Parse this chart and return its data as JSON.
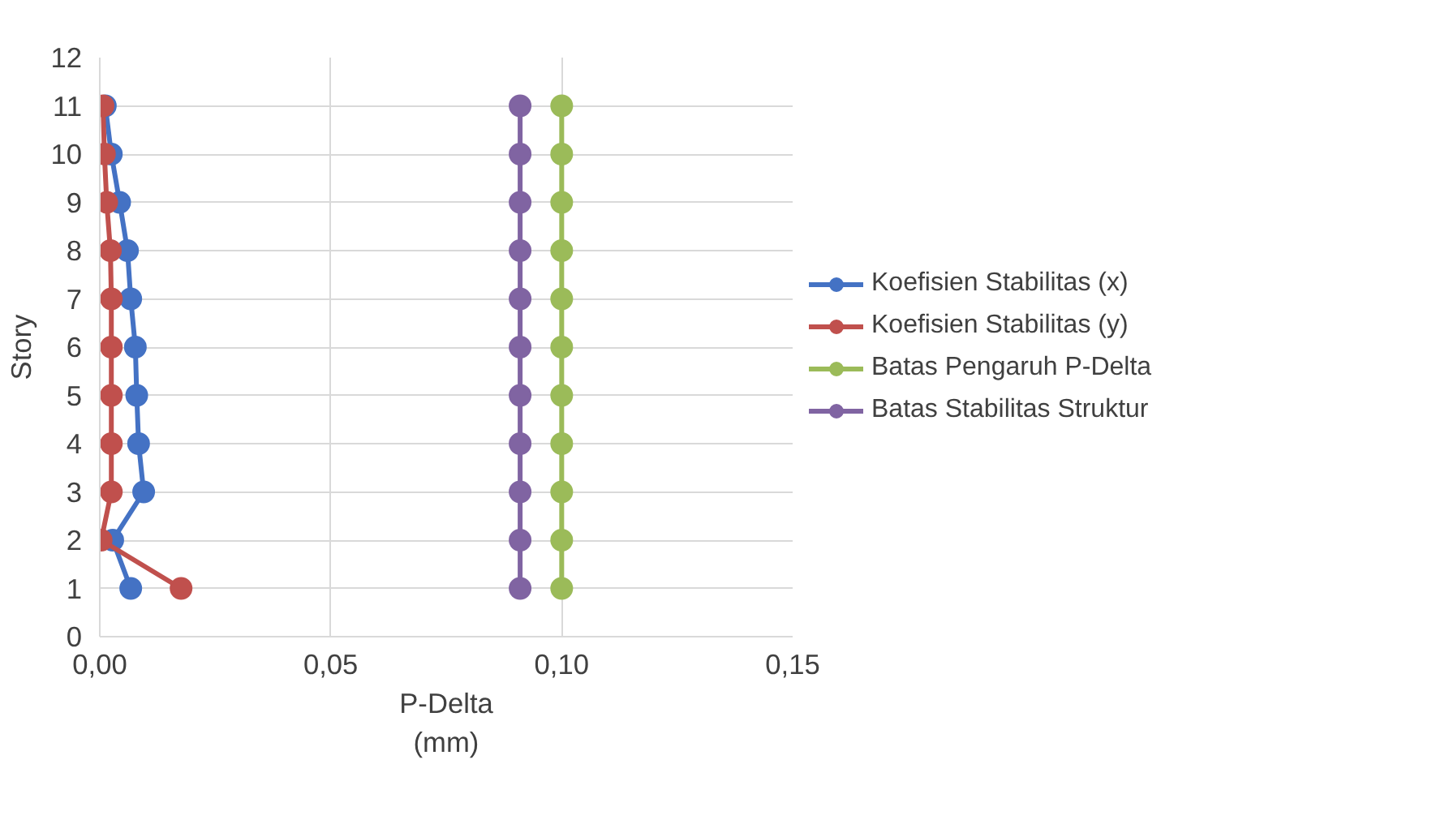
{
  "chart_data": {
    "type": "line",
    "xlabel": "P-Delta\n(mm)",
    "ylabel": "Story",
    "xlim": [
      0,
      0.15
    ],
    "xticks": [
      {
        "value": 0,
        "label": "0,00"
      },
      {
        "value": 0.05,
        "label": "0,05"
      },
      {
        "value": 0.1,
        "label": "0,10"
      },
      {
        "value": 0.15,
        "label": "0,15"
      }
    ],
    "ylim": [
      0,
      12
    ],
    "yticks": [
      0,
      1,
      2,
      3,
      4,
      5,
      6,
      7,
      8,
      9,
      10,
      11,
      12
    ],
    "grid": true,
    "legend": "right",
    "marker": "circle",
    "line_style": "solid",
    "series": [
      {
        "name": "Koefisien Stabilitas (x)",
        "color": "#4472c4",
        "x": [
          0.0067,
          0.0028,
          0.0095,
          0.0084,
          0.008,
          0.0077,
          0.0067,
          0.006,
          0.0043,
          0.0025,
          0.0012
        ],
        "values": [
          1,
          2,
          3,
          4,
          5,
          6,
          7,
          8,
          9,
          10,
          11
        ]
      },
      {
        "name": "Koefisien Stabilitas (y)",
        "color": "#c0504d",
        "x": [
          0.0176,
          0.0003,
          0.0025,
          0.0025,
          0.0025,
          0.0025,
          0.0025,
          0.0023,
          0.0015,
          0.001,
          0.0007
        ],
        "values": [
          1,
          2,
          3,
          4,
          5,
          6,
          7,
          8,
          9,
          10,
          11
        ]
      },
      {
        "name": "Batas Pengaruh P-Delta",
        "color": "#9bbb59",
        "x": [
          0.1,
          0.1,
          0.1,
          0.1,
          0.1,
          0.1,
          0.1,
          0.1,
          0.1,
          0.1,
          0.1
        ],
        "values": [
          1,
          2,
          3,
          4,
          5,
          6,
          7,
          8,
          9,
          10,
          11
        ]
      },
      {
        "name": "Batas Stabilitas Struktur",
        "color": "#8064a2",
        "x": [
          0.091,
          0.091,
          0.091,
          0.091,
          0.091,
          0.091,
          0.091,
          0.091,
          0.091,
          0.091,
          0.091
        ],
        "values": [
          1,
          2,
          3,
          4,
          5,
          6,
          7,
          8,
          9,
          10,
          11
        ]
      }
    ]
  }
}
